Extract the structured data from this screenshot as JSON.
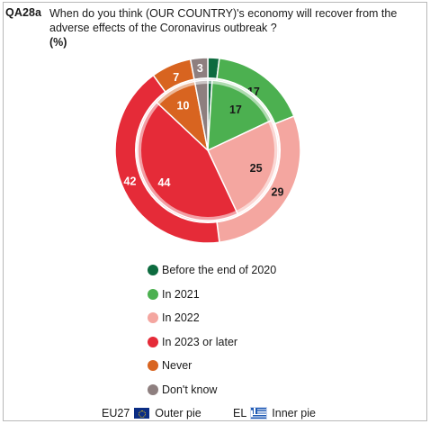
{
  "question": {
    "id": "QA28a",
    "text": "When do you think (OUR COUNTRY)'s economy will recover from the adverse effects of the Coronavirus outbreak ?",
    "unit": "(%)"
  },
  "footer": {
    "outer_label": "EU27",
    "outer_suffix": "Outer pie",
    "inner_label": "EL",
    "inner_suffix": "Inner pie",
    "outer_flag": "eu-flag-icon",
    "inner_flag": "greek-flag-icon"
  },
  "chart_data": {
    "type": "pie",
    "title": "",
    "categories": [
      "Before the end of 2020",
      "In 2021",
      "In 2022",
      "In 2023 or later",
      "Never",
      "Don't know"
    ],
    "colors": [
      "#0d6b3f",
      "#4cb050",
      "#f4a6a0",
      "#e52b38",
      "#d86420",
      "#8e7f7f"
    ],
    "series": [
      {
        "name": "Outer pie",
        "values": [
          2,
          17,
          29,
          42,
          7,
          3
        ],
        "labels": [
          "",
          "17",
          "29",
          "42",
          "7",
          "3"
        ]
      },
      {
        "name": "Inner pie",
        "values": [
          1,
          17,
          25,
          44,
          10,
          3
        ],
        "labels": [
          "",
          "17",
          "25",
          "44",
          "10",
          ""
        ]
      }
    ],
    "legend_position": "below"
  }
}
